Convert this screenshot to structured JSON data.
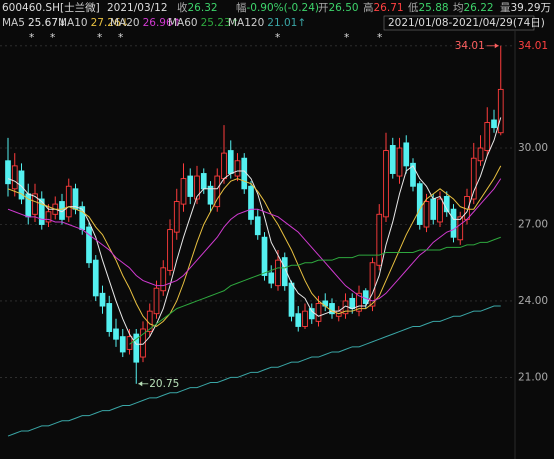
{
  "chart_data": {
    "type": "candlestick",
    "stock": "600460.SH[士兰微]",
    "date": "2021/03/12",
    "info": [
      {
        "label": "收",
        "value": "26.32",
        "color": "#3dd26a"
      },
      {
        "label": "幅",
        "value": "-0.90%(-0.24)",
        "color": "#3dd26a"
      },
      {
        "label": "开",
        "value": "26.50",
        "color": "#3dd26a"
      },
      {
        "label": "高",
        "value": "26.71",
        "color": "#ff4040"
      },
      {
        "label": "低",
        "value": "25.88",
        "color": "#3dd26a"
      },
      {
        "label": "均",
        "value": "26.22",
        "color": "#3dd26a"
      },
      {
        "label": "量",
        "value": "39.29万",
        "color": "#dddddd"
      }
    ],
    "range": "2021/01/08-2021/04/29(74日)",
    "event_marker": "*",
    "up_color": "#ff3c3c",
    "down_color": "#54f0f0",
    "top_tick_color": "#ff4040",
    "ylim": [
      17.8,
      34.63
    ],
    "yticks": [
      34.01,
      {
        "value": 30,
        "label": "30.00"
      },
      {
        "value": 27,
        "label": "27.00"
      },
      {
        "value": 24,
        "label": "24.00"
      },
      {
        "value": 21,
        "label": "21.00"
      }
    ],
    "grid": true,
    "open": [
      29.5,
      28.4,
      29.1,
      28.2,
      27.4,
      28.0,
      27.1,
      27.4,
      27.9,
      27.3,
      28.4,
      27.7,
      26.9,
      25.6,
      24.3,
      23.9,
      22.9,
      22.6,
      22.1,
      22.7,
      21.8,
      22.8,
      23.5,
      24.4,
      25.2,
      26.7,
      27.8,
      28.9,
      28.0,
      29.0,
      28.5,
      27.7,
      28.8,
      29.9,
      28.9,
      29.6,
      28.5,
      27.3,
      26.5,
      25.1,
      24.6,
      25.7,
      24.7,
      23.5,
      23.0,
      23.7,
      23.2,
      24.0,
      23.9,
      23.4,
      23.5,
      24.1,
      23.6,
      24.4,
      23.8,
      25.4,
      27.3,
      30.1,
      28.9,
      30.2,
      29.4,
      28.6,
      26.9,
      28.0,
      27.1,
      28.1,
      27.6,
      26.4,
      27.2,
      28.0,
      29.5,
      29.9,
      31.1,
      30.6
    ],
    "high": [
      30.4,
      29.8,
      29.4,
      28.6,
      28.6,
      28.3,
      27.8,
      28.1,
      28.2,
      28.8,
      28.6,
      27.9,
      27.1,
      25.8,
      24.6,
      24.2,
      23.3,
      22.9,
      22.9,
      22.9,
      23.2,
      23.9,
      24.8,
      25.6,
      27.2,
      28.4,
      29.4,
      29.2,
      29.3,
      29.2,
      28.7,
      29.2,
      30.9,
      30.3,
      29.8,
      29.8,
      28.7,
      27.6,
      26.7,
      25.4,
      26.0,
      25.9,
      24.8,
      23.8,
      23.9,
      23.9,
      24.2,
      24.3,
      24.1,
      23.8,
      24.3,
      24.3,
      24.6,
      24.5,
      25.7,
      27.8,
      30.6,
      30.4,
      30.4,
      30.5,
      29.6,
      28.7,
      28.2,
      28.2,
      28.3,
      28.3,
      27.8,
      27.5,
      28.4,
      30.2,
      30.5,
      31.6,
      31.5,
      34.01
    ],
    "low": [
      28.1,
      28.1,
      27.8,
      27.0,
      27.1,
      26.8,
      26.9,
      27.2,
      27.0,
      27.1,
      27.4,
      26.6,
      25.3,
      24.0,
      23.5,
      22.6,
      22.2,
      21.8,
      21.9,
      20.75,
      21.6,
      22.6,
      23.3,
      24.2,
      25.0,
      26.4,
      27.5,
      27.8,
      27.8,
      28.2,
      27.5,
      27.5,
      28.6,
      28.8,
      28.7,
      28.2,
      27.0,
      26.4,
      24.8,
      24.5,
      24.4,
      24.4,
      23.2,
      22.8,
      22.9,
      23.1,
      23.0,
      23.6,
      23.3,
      23.2,
      23.3,
      23.5,
      23.4,
      23.7,
      23.6,
      25.2,
      27.1,
      28.8,
      28.6,
      29.0,
      28.3,
      26.8,
      26.7,
      27.0,
      26.9,
      27.3,
      26.3,
      26.2,
      27.0,
      27.8,
      29.3,
      29.7,
      30.6,
      30.5
    ],
    "close": [
      28.6,
      29.3,
      28.0,
      27.3,
      28.2,
      27.0,
      27.5,
      27.8,
      27.2,
      28.5,
      27.6,
      26.8,
      25.5,
      24.2,
      23.8,
      22.8,
      22.5,
      22.0,
      22.6,
      21.6,
      22.9,
      23.6,
      24.5,
      25.3,
      26.8,
      27.9,
      28.8,
      28.1,
      28.9,
      28.4,
      27.8,
      28.9,
      29.8,
      29.0,
      29.5,
      28.4,
      27.2,
      26.6,
      25.0,
      24.7,
      25.6,
      24.6,
      23.4,
      23.0,
      23.6,
      23.3,
      23.9,
      23.8,
      23.5,
      23.6,
      24.0,
      23.7,
      24.3,
      23.9,
      25.5,
      27.4,
      29.9,
      29.0,
      30.0,
      29.3,
      28.5,
      27.0,
      27.9,
      27.2,
      28.0,
      27.5,
      26.5,
      27.3,
      28.1,
      29.6,
      30.0,
      31.0,
      30.8,
      32.3
    ],
    "series": [
      {
        "name": "MA5",
        "value_label": "25.67↓",
        "color": "#e8e8e8",
        "values": [
          28.8,
          28.7,
          28.5,
          28.2,
          28.1,
          27.9,
          27.6,
          27.6,
          27.5,
          27.7,
          27.7,
          27.6,
          27.1,
          26.5,
          25.6,
          24.8,
          24.0,
          23.3,
          22.7,
          22.3,
          22.3,
          22.6,
          23.1,
          23.7,
          24.6,
          25.6,
          26.5,
          27.3,
          28.1,
          28.4,
          28.4,
          28.4,
          28.8,
          29.0,
          29.1,
          29.1,
          28.8,
          28.2,
          27.3,
          26.3,
          25.8,
          25.3,
          24.7,
          24.3,
          24.1,
          23.6,
          23.4,
          23.5,
          23.6,
          23.6,
          23.8,
          23.7,
          23.8,
          23.8,
          24.3,
          25.0,
          26.2,
          27.1,
          28.2,
          29.1,
          29.3,
          28.8,
          28.5,
          28.0,
          28.1,
          27.6,
          27.2,
          27.2,
          27.5,
          28.3,
          28.9,
          29.7,
          30.3,
          31.2
        ]
      },
      {
        "name": "MA10",
        "value_label": "27.26↓",
        "color": "#e8c040",
        "values": [
          28.4,
          28.3,
          28.2,
          28.0,
          27.9,
          27.8,
          27.7,
          27.6,
          27.6,
          27.7,
          27.6,
          27.5,
          27.3,
          26.9,
          26.6,
          26.1,
          25.6,
          25.0,
          24.5,
          23.9,
          23.4,
          23.1,
          23.0,
          23.2,
          23.5,
          24.0,
          24.7,
          25.5,
          26.3,
          27.0,
          27.5,
          28.0,
          28.4,
          28.7,
          28.8,
          28.7,
          28.6,
          28.3,
          27.9,
          27.4,
          27.0,
          26.5,
          26.0,
          25.4,
          24.8,
          24.3,
          24.0,
          23.8,
          23.6,
          23.5,
          23.6,
          23.6,
          23.7,
          23.7,
          23.9,
          24.2,
          24.8,
          25.4,
          26.0,
          26.6,
          27.1,
          27.6,
          28.0,
          28.2,
          28.4,
          28.2,
          28.0,
          27.7,
          27.6,
          27.6,
          28.0,
          28.4,
          28.8,
          29.3
        ]
      },
      {
        "name": "MA20",
        "value_label": "26.96↑",
        "color": "#d03ad0",
        "values": [
          27.6,
          27.5,
          27.4,
          27.3,
          27.3,
          27.2,
          27.2,
          27.1,
          27.1,
          27.0,
          26.9,
          26.8,
          26.6,
          26.4,
          26.2,
          26.0,
          25.7,
          25.5,
          25.3,
          25.0,
          24.8,
          24.7,
          24.6,
          24.6,
          24.7,
          24.8,
          25.0,
          25.3,
          25.6,
          25.9,
          26.2,
          26.5,
          26.9,
          27.2,
          27.4,
          27.5,
          27.6,
          27.6,
          27.5,
          27.4,
          27.3,
          27.1,
          26.9,
          26.7,
          26.4,
          26.1,
          25.8,
          25.5,
          25.2,
          24.9,
          24.6,
          24.4,
          24.2,
          24.1,
          24.0,
          24.1,
          24.3,
          24.6,
          24.9,
          25.2,
          25.5,
          25.8,
          26.0,
          26.3,
          26.5,
          26.7,
          26.8,
          27.0,
          27.2,
          27.5,
          27.8,
          28.1,
          28.4,
          28.8
        ]
      },
      {
        "name": "MA60",
        "value_label": "25.23↑",
        "color": "#2ea83e",
        "values": [
          null,
          null,
          null,
          null,
          null,
          null,
          null,
          null,
          null,
          null,
          null,
          null,
          null,
          null,
          null,
          null,
          null,
          null,
          22.3,
          22.5,
          22.7,
          22.9,
          23.1,
          23.3,
          23.5,
          23.7,
          23.8,
          23.9,
          24.0,
          24.1,
          24.2,
          24.3,
          24.4,
          24.6,
          24.7,
          24.8,
          24.9,
          25.0,
          25.1,
          25.2,
          25.3,
          25.3,
          25.4,
          25.4,
          25.5,
          25.5,
          25.6,
          25.6,
          25.6,
          25.7,
          25.7,
          25.7,
          25.8,
          25.8,
          25.8,
          25.8,
          25.9,
          25.9,
          25.9,
          25.9,
          25.9,
          26.0,
          26.0,
          26.0,
          26.0,
          26.1,
          26.1,
          26.1,
          26.2,
          26.2,
          26.3,
          26.3,
          26.4,
          26.5
        ]
      },
      {
        "name": "MA120",
        "value_label": "21.01↑",
        "color": "#3aa6a6",
        "values": [
          18.7,
          18.8,
          18.9,
          18.9,
          19.0,
          19.1,
          19.1,
          19.2,
          19.3,
          19.3,
          19.4,
          19.5,
          19.5,
          19.6,
          19.7,
          19.7,
          19.8,
          19.9,
          19.9,
          20.0,
          20.1,
          20.2,
          20.2,
          20.3,
          20.4,
          20.4,
          20.5,
          20.6,
          20.6,
          20.7,
          20.8,
          20.8,
          20.9,
          21.0,
          21.0,
          21.1,
          21.2,
          21.2,
          21.3,
          21.4,
          21.4,
          21.5,
          21.6,
          21.6,
          21.7,
          21.8,
          21.8,
          21.9,
          22.0,
          22.0,
          22.1,
          22.2,
          22.2,
          22.3,
          22.4,
          22.5,
          22.6,
          22.7,
          22.8,
          22.9,
          23.0,
          23.0,
          23.1,
          23.2,
          23.2,
          23.3,
          23.4,
          23.4,
          23.5,
          23.6,
          23.6,
          23.7,
          23.8,
          23.8
        ]
      }
    ]
  }
}
